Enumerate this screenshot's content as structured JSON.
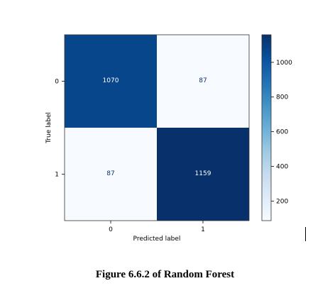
{
  "chart_data": {
    "type": "heatmap",
    "title": "",
    "xlabel": "Predicted label",
    "ylabel": "True label",
    "x_categories": [
      "0",
      "1"
    ],
    "y_categories": [
      "0",
      "1"
    ],
    "matrix": [
      [
        1070,
        87
      ],
      [
        87,
        1159
      ]
    ],
    "colormap": "Blues",
    "colorbar": {
      "range": [
        87,
        1159
      ],
      "ticks": [
        200,
        400,
        600,
        800,
        1000
      ]
    },
    "grid": false
  },
  "caption": "Figure 6.6.2 of Random Forest"
}
